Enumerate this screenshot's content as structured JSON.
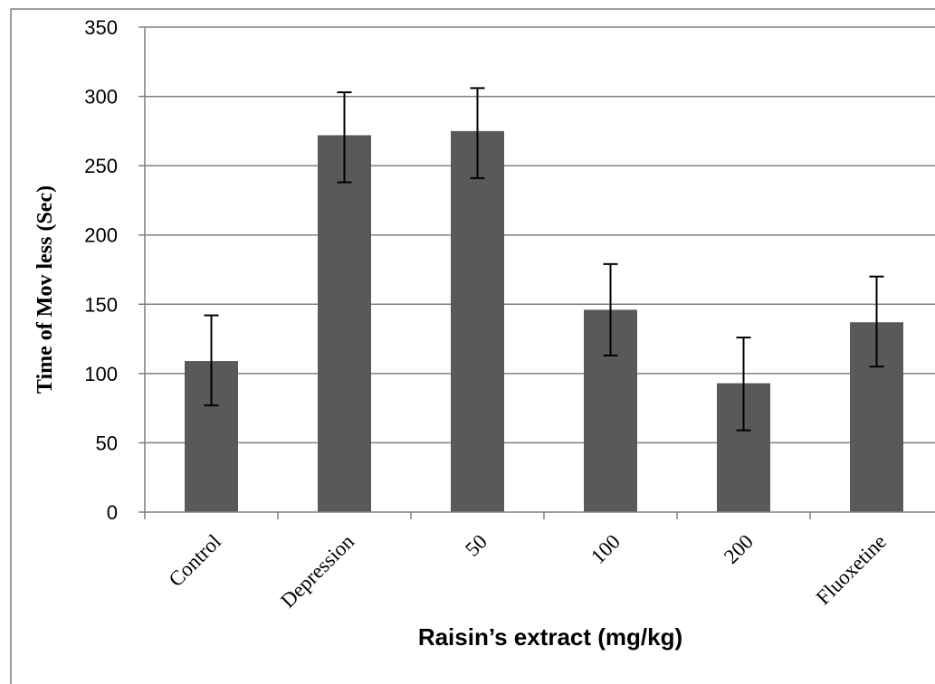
{
  "chart_data": {
    "type": "bar",
    "title": "",
    "xlabel": "Raisin’s extract (mg/kg)",
    "ylabel": "Time of Mov less (Sec)",
    "categories": [
      "Control",
      "Depression",
      "50",
      "100",
      "200",
      "Fluoxetine"
    ],
    "values": [
      109,
      272,
      275,
      146,
      93,
      137
    ],
    "error_upper": [
      142,
      303,
      306,
      179,
      126,
      170
    ],
    "error_lower": [
      77,
      238,
      241,
      113,
      59,
      105
    ],
    "ylim": [
      0,
      350
    ],
    "yticks": [
      0,
      50,
      100,
      150,
      200,
      250,
      300,
      350
    ],
    "grid": true,
    "bar_color": "#595959",
    "gridline_color": "#7f7f7f",
    "error_bar_color": "#000000"
  }
}
